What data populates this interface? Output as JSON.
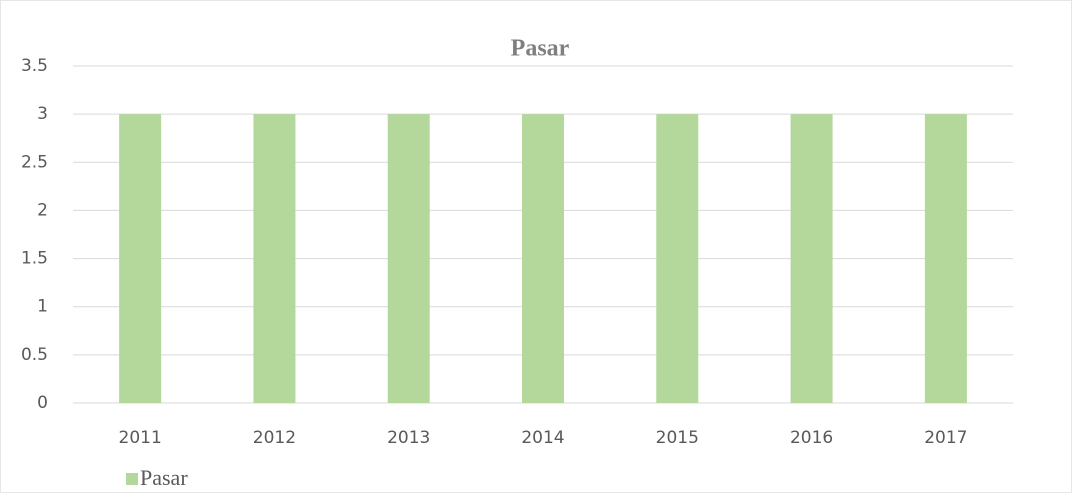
{
  "chart_data": {
    "type": "bar",
    "title": "Pasar",
    "categories": [
      "2011",
      "2012",
      "2013",
      "2014",
      "2015",
      "2016",
      "2017"
    ],
    "series": [
      {
        "name": "Pasar",
        "color": "#b4d79b",
        "values": [
          3,
          3,
          3,
          3,
          3,
          3,
          3
        ]
      }
    ],
    "ylim": [
      0,
      3.5
    ],
    "yticks": [
      0,
      0.5,
      1,
      1.5,
      2,
      2.5,
      3,
      3.5
    ],
    "grid": true,
    "legend": "bottom-left"
  }
}
